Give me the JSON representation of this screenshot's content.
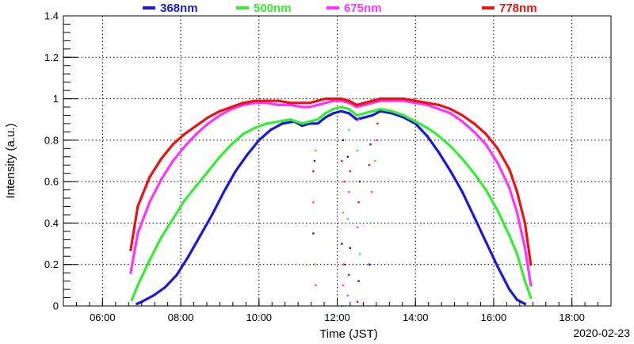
{
  "chart_data": {
    "type": "scatter",
    "xlabel": "Time (JST)",
    "ylabel": "Intensity (a.u.)",
    "date": "2020-02-23",
    "xlim_hours": [
      5.0,
      19.0
    ],
    "ylim": [
      0,
      1.4
    ],
    "x_ticks": [
      "06:00",
      "08:00",
      "10:00",
      "12:00",
      "14:00",
      "16:00",
      "18:00"
    ],
    "x_tick_hours": [
      6,
      8,
      10,
      12,
      14,
      16,
      18
    ],
    "y_ticks": [
      "0",
      "0.2",
      "0.4",
      "0.6",
      "0.8",
      "1",
      "1.2",
      "1.4"
    ],
    "y_tick_values": [
      0,
      0.2,
      0.4,
      0.6,
      0.8,
      1.0,
      1.2,
      1.4
    ],
    "grid": true,
    "legend_position": "top",
    "series": [
      {
        "name": "368nm",
        "color": "#1a1ad6",
        "x": [
          6.88,
          7.0,
          7.3,
          7.6,
          7.9,
          8.2,
          8.5,
          8.8,
          9.1,
          9.4,
          9.7,
          10.0,
          10.3,
          10.6,
          10.9,
          11.1,
          11.3,
          11.5,
          11.7,
          11.9,
          12.1,
          12.3,
          12.5,
          12.7,
          12.9,
          13.1,
          13.4,
          13.7,
          14.0,
          14.3,
          14.6,
          14.9,
          15.2,
          15.5,
          15.8,
          16.1,
          16.4,
          16.6,
          16.8
        ],
        "y": [
          0.01,
          0.02,
          0.05,
          0.09,
          0.15,
          0.24,
          0.34,
          0.44,
          0.55,
          0.65,
          0.73,
          0.8,
          0.85,
          0.88,
          0.89,
          0.87,
          0.88,
          0.88,
          0.91,
          0.93,
          0.94,
          0.93,
          0.9,
          0.91,
          0.92,
          0.94,
          0.93,
          0.91,
          0.88,
          0.82,
          0.74,
          0.65,
          0.55,
          0.43,
          0.31,
          0.19,
          0.08,
          0.03,
          0.01
        ]
      },
      {
        "name": "500nm",
        "color": "#33ee33",
        "x": [
          6.75,
          6.9,
          7.2,
          7.5,
          7.8,
          8.1,
          8.4,
          8.7,
          9.0,
          9.3,
          9.6,
          9.9,
          10.2,
          10.5,
          10.8,
          11.1,
          11.3,
          11.5,
          11.7,
          11.9,
          12.1,
          12.3,
          12.5,
          12.7,
          12.9,
          13.1,
          13.4,
          13.7,
          14.0,
          14.3,
          14.6,
          14.9,
          15.2,
          15.5,
          15.8,
          16.1,
          16.4,
          16.6,
          16.8,
          16.95
        ],
        "y": [
          0.03,
          0.1,
          0.22,
          0.33,
          0.42,
          0.51,
          0.58,
          0.65,
          0.72,
          0.78,
          0.83,
          0.86,
          0.88,
          0.89,
          0.9,
          0.88,
          0.89,
          0.9,
          0.93,
          0.95,
          0.96,
          0.95,
          0.92,
          0.93,
          0.94,
          0.95,
          0.94,
          0.92,
          0.89,
          0.86,
          0.82,
          0.77,
          0.71,
          0.64,
          0.56,
          0.46,
          0.34,
          0.25,
          0.12,
          0.04
        ]
      },
      {
        "name": "675nm",
        "color": "#ff33ff",
        "x": [
          6.72,
          6.9,
          7.2,
          7.5,
          7.8,
          8.1,
          8.4,
          8.7,
          9.0,
          9.3,
          9.6,
          9.9,
          10.2,
          10.5,
          10.8,
          11.1,
          11.3,
          11.5,
          11.7,
          11.9,
          12.1,
          12.3,
          12.5,
          12.7,
          12.9,
          13.1,
          13.4,
          13.7,
          14.0,
          14.3,
          14.6,
          14.9,
          15.2,
          15.5,
          15.8,
          16.1,
          16.4,
          16.6,
          16.8,
          16.95
        ],
        "y": [
          0.16,
          0.35,
          0.5,
          0.61,
          0.7,
          0.77,
          0.83,
          0.88,
          0.92,
          0.95,
          0.97,
          0.98,
          0.98,
          0.97,
          0.97,
          0.96,
          0.96,
          0.97,
          0.98,
          0.99,
          0.99,
          0.98,
          0.96,
          0.97,
          0.98,
          0.99,
          0.99,
          0.99,
          0.98,
          0.97,
          0.95,
          0.93,
          0.89,
          0.84,
          0.78,
          0.69,
          0.57,
          0.45,
          0.28,
          0.1
        ]
      },
      {
        "name": "778nm",
        "color": "#ee1111",
        "x": [
          6.72,
          6.9,
          7.2,
          7.5,
          7.8,
          8.1,
          8.4,
          8.7,
          9.0,
          9.3,
          9.6,
          9.9,
          10.2,
          10.5,
          10.8,
          11.1,
          11.3,
          11.5,
          11.7,
          11.9,
          12.1,
          12.3,
          12.5,
          12.7,
          12.9,
          13.1,
          13.4,
          13.7,
          14.0,
          14.3,
          14.6,
          14.9,
          15.2,
          15.5,
          15.8,
          16.1,
          16.4,
          16.6,
          16.8,
          16.95
        ],
        "y": [
          0.27,
          0.48,
          0.62,
          0.71,
          0.78,
          0.83,
          0.87,
          0.91,
          0.94,
          0.96,
          0.98,
          0.99,
          0.99,
          0.99,
          0.98,
          0.98,
          0.98,
          0.99,
          1.0,
          1.0,
          1.0,
          0.99,
          0.97,
          0.98,
          0.99,
          1.0,
          1.0,
          1.0,
          0.99,
          0.98,
          0.97,
          0.95,
          0.92,
          0.88,
          0.83,
          0.76,
          0.66,
          0.55,
          0.4,
          0.2
        ]
      }
    ],
    "cloud_dips": [
      {
        "x": 11.42,
        "y": [
          0.35,
          0.2,
          0.1,
          0.65,
          0.7,
          0.75,
          0.5
        ]
      },
      {
        "x": 12.15,
        "y": [
          0.0,
          0.1,
          0.2,
          0.3,
          0.45,
          0.6,
          0.7,
          0.8
        ]
      },
      {
        "x": 12.3,
        "y": [
          0.05,
          0.15,
          0.28,
          0.42,
          0.55,
          0.65,
          0.72,
          0.85
        ]
      },
      {
        "x": 12.55,
        "y": [
          0.02,
          0.12,
          0.25,
          0.38,
          0.5,
          0.6,
          0.75,
          0.9
        ]
      },
      {
        "x": 12.85,
        "y": [
          0.2,
          0.4,
          0.55,
          0.68,
          0.78
        ]
      },
      {
        "x": 13.0,
        "y": [
          0.7,
          0.8,
          0.88
        ]
      }
    ]
  }
}
